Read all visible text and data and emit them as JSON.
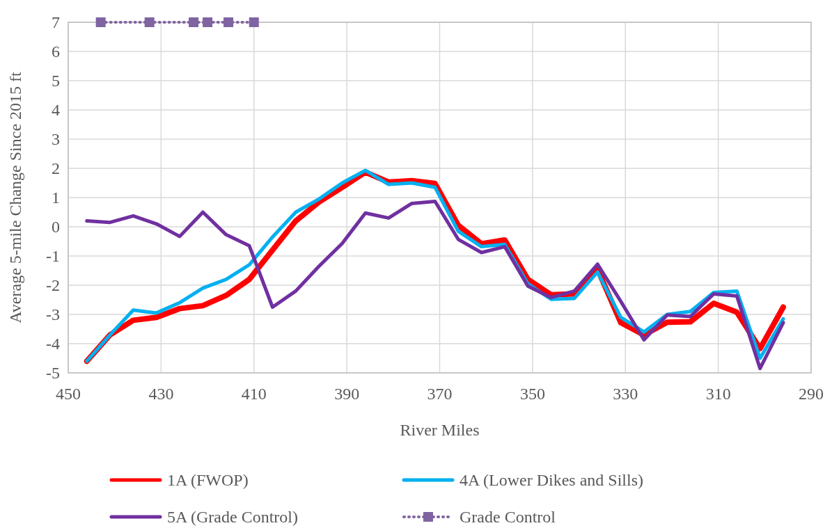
{
  "chart_data": {
    "type": "line",
    "xlabel": "River Miles",
    "ylabel": "Average 5-mile Change Since 2015 ft",
    "x": [
      446,
      441,
      436,
      431,
      426,
      421,
      416,
      411,
      406,
      401,
      396,
      391,
      386,
      381,
      376,
      371,
      366,
      361,
      356,
      351,
      346,
      341,
      336,
      331,
      326,
      321,
      316,
      311,
      306,
      301,
      296
    ],
    "xlim": [
      450,
      290
    ],
    "xticks": [
      450,
      430,
      410,
      390,
      370,
      350,
      330,
      310,
      290
    ],
    "ylim": [
      -5,
      7
    ],
    "yticks": [
      -5,
      -4,
      -3,
      -2,
      -1,
      0,
      1,
      2,
      3,
      4,
      5,
      6,
      7
    ],
    "grid": true,
    "legend": "bottom",
    "marker": "none",
    "line_style": "solid",
    "series": [
      {
        "name": "1A (FWOP)",
        "color": "#ff0000",
        "values": [
          -4.6,
          -3.7,
          -3.2,
          -3.1,
          -2.8,
          -2.7,
          -2.35,
          -1.8,
          -0.8,
          0.2,
          0.85,
          1.35,
          1.87,
          1.53,
          1.58,
          1.48,
          0.05,
          -0.58,
          -0.45,
          -1.8,
          -2.33,
          -2.3,
          -1.45,
          -3.28,
          -3.7,
          -3.27,
          -3.25,
          -2.62,
          -2.92,
          -4.17,
          -2.75
        ]
      },
      {
        "name": "4A (Lower Dikes and Sills)",
        "color": "#00b0f0",
        "values": [
          -4.6,
          -3.7,
          -2.85,
          -2.95,
          -2.6,
          -2.1,
          -1.8,
          -1.3,
          -0.35,
          0.5,
          0.95,
          1.5,
          1.93,
          1.45,
          1.5,
          1.35,
          -0.15,
          -0.68,
          -0.6,
          -1.95,
          -2.48,
          -2.45,
          -1.55,
          -3.1,
          -3.6,
          -3.0,
          -2.9,
          -2.25,
          -2.2,
          -4.5,
          -3.15
        ]
      },
      {
        "name": "5A (Grade Control)",
        "color": "#7030a0",
        "values": [
          0.2,
          0.15,
          0.37,
          0.1,
          -0.33,
          0.5,
          -0.27,
          -0.65,
          -2.75,
          -2.2,
          -1.35,
          -0.57,
          0.47,
          0.3,
          0.8,
          0.87,
          -0.43,
          -0.88,
          -0.68,
          -2.03,
          -2.42,
          -2.2,
          -1.28,
          -2.55,
          -3.87,
          -3.02,
          -3.07,
          -2.3,
          -2.37,
          -4.85,
          -3.28
        ]
      },
      {
        "name": "Grade Control",
        "color": "#8064a2",
        "x": [
          443,
          432.5,
          423,
          420,
          415.5,
          410
        ],
        "values": [
          7,
          7,
          7,
          7,
          7,
          7
        ],
        "marker": "square",
        "line_style": "dotted"
      }
    ]
  }
}
